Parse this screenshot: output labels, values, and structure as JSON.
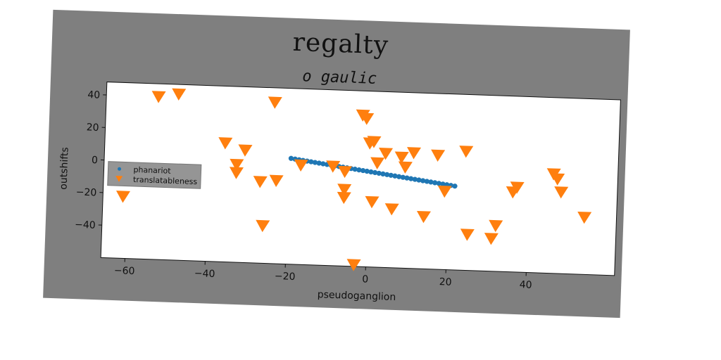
{
  "chart_data": {
    "type": "scatter",
    "title": "regalty",
    "subtitle": "o gaulic",
    "xlabel": "pseudoganglion",
    "ylabel": "outshifts",
    "xlim": [
      -66,
      62
    ],
    "ylim": [
      -60,
      48
    ],
    "xticks": [
      -60,
      -40,
      -20,
      0,
      20,
      40
    ],
    "yticks": [
      40,
      20,
      0,
      -20,
      -40
    ],
    "legend_position": "center-left",
    "grid": false,
    "series": [
      {
        "name": "phanariot",
        "color": "#1f77b4",
        "marker": "circle",
        "line": {
          "x0": -19.5,
          "y0": 5.0,
          "x1": 21.5,
          "y1": -8.5,
          "n": 42
        }
      },
      {
        "name": "translatableness",
        "color": "#ff7f0e",
        "marker": "triangle-down",
        "points": [
          [
            -61,
            -22
          ],
          [
            -53,
            40
          ],
          [
            -48,
            42
          ],
          [
            -24,
            39
          ],
          [
            -36,
            13
          ],
          [
            -31,
            9
          ],
          [
            -33,
            0
          ],
          [
            -33,
            -5
          ],
          [
            -27,
            -10
          ],
          [
            -23,
            -9
          ],
          [
            -26,
            -37
          ],
          [
            -17,
            1
          ],
          [
            -9,
            1
          ],
          [
            -6,
            -2
          ],
          [
            -6,
            -13
          ],
          [
            -6,
            -18
          ],
          [
            -2,
            33
          ],
          [
            -1,
            31
          ],
          [
            0,
            16
          ],
          [
            1,
            17
          ],
          [
            2,
            4
          ],
          [
            4,
            10
          ],
          [
            1,
            -20
          ],
          [
            6,
            -24
          ],
          [
            8,
            8
          ],
          [
            9,
            2
          ],
          [
            11,
            11
          ],
          [
            14,
            -28
          ],
          [
            17,
            10
          ],
          [
            19,
            -12
          ],
          [
            24,
            13
          ],
          [
            25,
            -38
          ],
          [
            31,
            -40
          ],
          [
            32,
            -32
          ],
          [
            36,
            -11
          ],
          [
            37,
            -8
          ],
          [
            46,
            1
          ],
          [
            47,
            -2
          ],
          [
            48,
            -10
          ],
          [
            54,
            -25
          ],
          [
            -3,
            -59
          ]
        ]
      }
    ]
  }
}
